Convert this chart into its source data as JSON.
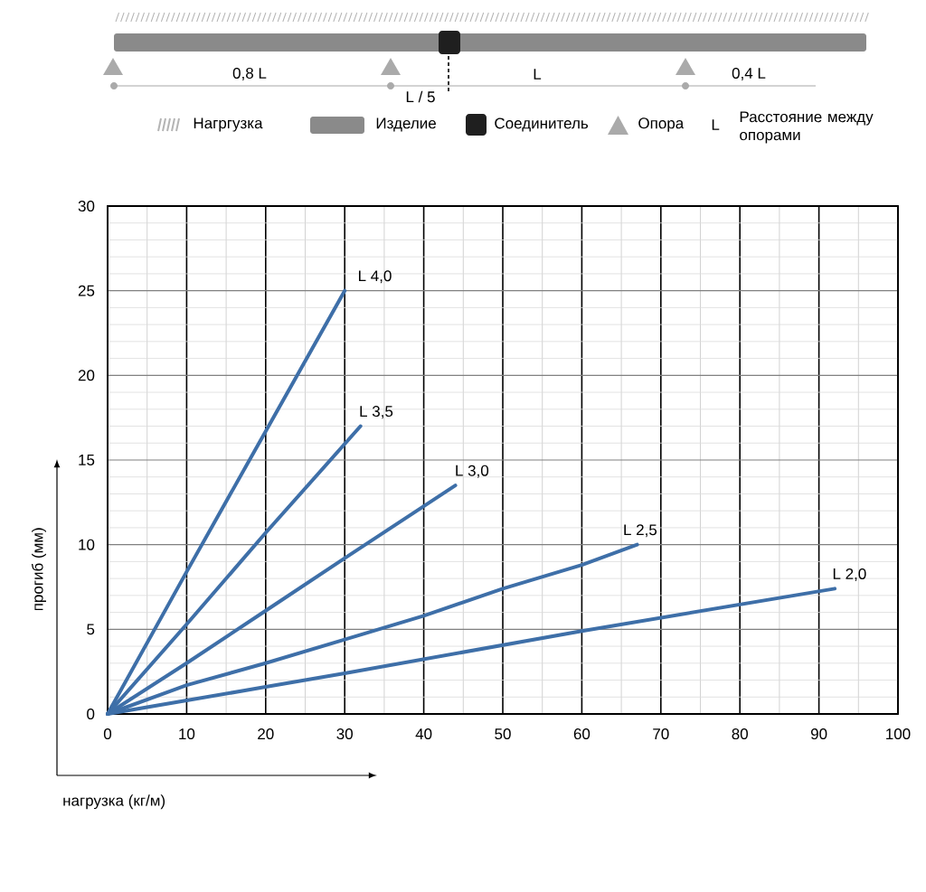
{
  "chart_data": {
    "type": "line",
    "xlabel": "нагрузка (кг/м)",
    "ylabel": "прогиб (мм)",
    "xlim": [
      0,
      100
    ],
    "ylim": [
      0,
      30
    ],
    "xticks": [
      0,
      10,
      20,
      30,
      40,
      50,
      60,
      70,
      80,
      90,
      100
    ],
    "yticks": [
      0,
      5,
      10,
      15,
      20,
      25,
      30
    ],
    "grid": true,
    "line_style": "solid",
    "series": [
      {
        "name": "L 4,0",
        "color": "#3e6fa8",
        "x": [
          0,
          10,
          20,
          30
        ],
        "values": [
          0,
          8.4,
          16.7,
          25
        ]
      },
      {
        "name": "L 3,5",
        "color": "#3e6fa8",
        "x": [
          0,
          10,
          20,
          32
        ],
        "values": [
          0,
          5.3,
          10.7,
          17
        ]
      },
      {
        "name": "L 3,0",
        "color": "#3e6fa8",
        "x": [
          0,
          10,
          20,
          30,
          44
        ],
        "values": [
          0,
          3.0,
          6.1,
          9.2,
          13.5
        ]
      },
      {
        "name": "L 2,5",
        "color": "#3e6fa8",
        "x": [
          0,
          10,
          20,
          30,
          40,
          50,
          60,
          67
        ],
        "values": [
          0,
          1.7,
          3.0,
          4.4,
          5.8,
          7.4,
          8.8,
          10
        ]
      },
      {
        "name": "L 2,0",
        "color": "#3e6fa8",
        "x": [
          0,
          10,
          20,
          30,
          60,
          92
        ],
        "values": [
          0,
          0.8,
          1.6,
          2.4,
          4.9,
          7.4
        ]
      }
    ],
    "annotations": [
      "0,8 L",
      "L / 5",
      "L",
      "0,4 L",
      "Нагргузка",
      "Изделие",
      "Соединитель",
      "Опора",
      "L",
      "Расстояние между опорами"
    ]
  }
}
